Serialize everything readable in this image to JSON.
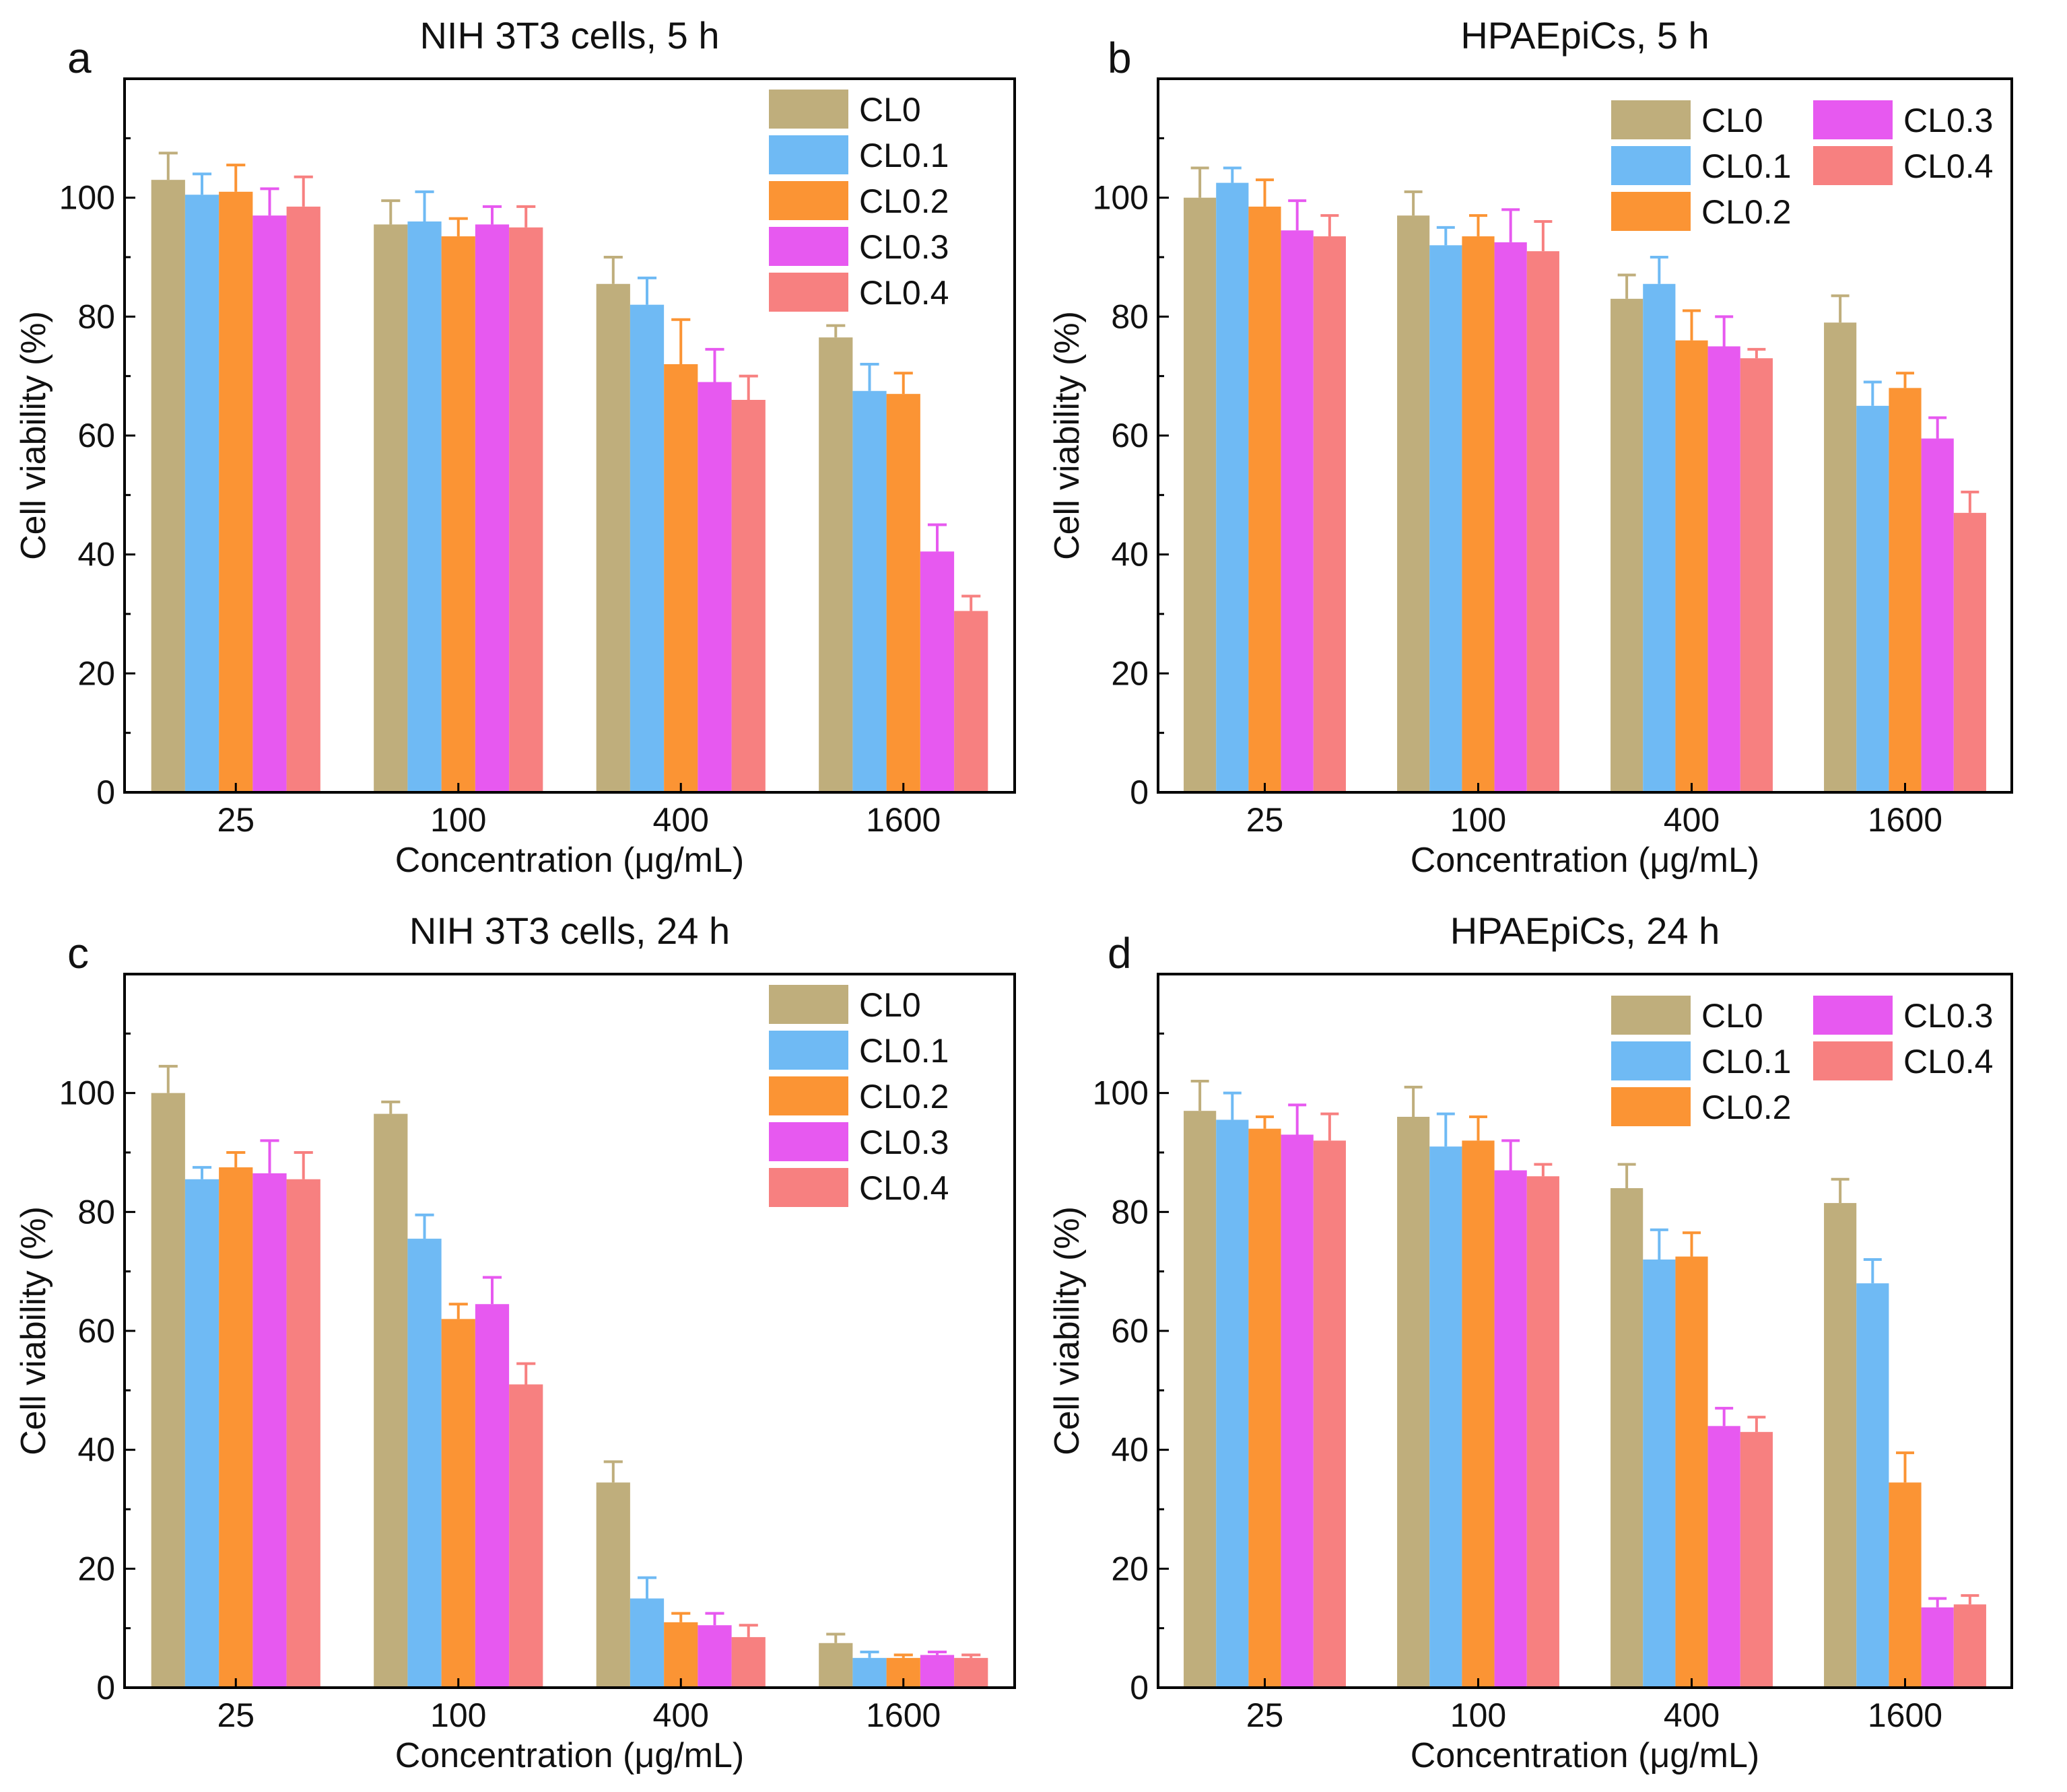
{
  "figure": {
    "x_tick_unit_note": ""
  },
  "colors": {
    "CL0": "#bfae7c",
    "CL0.1": "#6fbaf4",
    "CL0.2": "#fb9434",
    "CL0.3": "#e759f0",
    "CL0.4": "#f78080"
  },
  "chart_data": [
    {
      "type": "bar",
      "panel_label": "a",
      "title": "NIH 3T3 cells, 5 h",
      "xlabel": "Concentration (μg/mL)",
      "ylabel": "Cell viability (%)",
      "categories": [
        "25",
        "100",
        "400",
        "1600"
      ],
      "ylim": [
        0,
        120
      ],
      "yticks": [
        0,
        20,
        40,
        60,
        80,
        100
      ],
      "legend": {
        "placement": "top-right",
        "columns": 1,
        "entries": [
          "CL0",
          "CL0.1",
          "CL0.2",
          "CL0.3",
          "CL0.4"
        ]
      },
      "series": [
        {
          "name": "CL0",
          "values": [
            103,
            95.5,
            85.5,
            76.5
          ],
          "errors": [
            4.5,
            4.0,
            4.5,
            2.0
          ]
        },
        {
          "name": "CL0.1",
          "values": [
            100.5,
            96,
            82,
            67.5
          ],
          "errors": [
            3.5,
            5.0,
            4.5,
            4.5
          ]
        },
        {
          "name": "CL0.2",
          "values": [
            101,
            93.5,
            72,
            67
          ],
          "errors": [
            4.5,
            3.0,
            7.5,
            3.5
          ]
        },
        {
          "name": "CL0.3",
          "values": [
            97,
            95.5,
            69,
            40.5
          ],
          "errors": [
            4.5,
            3.0,
            5.5,
            4.5
          ]
        },
        {
          "name": "CL0.4",
          "values": [
            98.5,
            95,
            66,
            30.5
          ],
          "errors": [
            5.0,
            3.5,
            4.0,
            2.5
          ]
        }
      ]
    },
    {
      "type": "bar",
      "panel_label": "b",
      "title": "HPAEpiCs, 5 h",
      "xlabel": "Concentration (μg/mL)",
      "ylabel": "Cell viability (%)",
      "categories": [
        "25",
        "100",
        "400",
        "1600"
      ],
      "ylim": [
        0,
        120
      ],
      "yticks": [
        0,
        20,
        40,
        60,
        80,
        100
      ],
      "legend": {
        "placement": "top-right",
        "columns": 2,
        "entries": [
          "CL0",
          "CL0.1",
          "CL0.2",
          "CL0.3",
          "CL0.4"
        ]
      },
      "series": [
        {
          "name": "CL0",
          "values": [
            100,
            97,
            83,
            79
          ],
          "errors": [
            5.0,
            4.0,
            4.0,
            4.5
          ]
        },
        {
          "name": "CL0.1",
          "values": [
            102.5,
            92,
            85.5,
            65
          ],
          "errors": [
            2.5,
            3.0,
            4.5,
            4.0
          ]
        },
        {
          "name": "CL0.2",
          "values": [
            98.5,
            93.5,
            76,
            68
          ],
          "errors": [
            4.5,
            3.5,
            5.0,
            2.5
          ]
        },
        {
          "name": "CL0.3",
          "values": [
            94.5,
            92.5,
            75,
            59.5
          ],
          "errors": [
            5.0,
            5.5,
            5.0,
            3.5
          ]
        },
        {
          "name": "CL0.4",
          "values": [
            93.5,
            91,
            73,
            47
          ],
          "errors": [
            3.5,
            5.0,
            1.5,
            3.5
          ]
        }
      ]
    },
    {
      "type": "bar",
      "panel_label": "c",
      "title": "NIH 3T3 cells, 24 h",
      "xlabel": "Concentration (μg/mL)",
      "ylabel": "Cell viability (%)",
      "categories": [
        "25",
        "100",
        "400",
        "1600"
      ],
      "ylim": [
        0,
        120
      ],
      "yticks": [
        0,
        20,
        40,
        60,
        80,
        100
      ],
      "legend": {
        "placement": "top-right",
        "columns": 1,
        "entries": [
          "CL0",
          "CL0.1",
          "CL0.2",
          "CL0.3",
          "CL0.4"
        ]
      },
      "series": [
        {
          "name": "CL0",
          "values": [
            100,
            96.5,
            34.5,
            7.5
          ],
          "errors": [
            4.5,
            2.0,
            3.5,
            1.5
          ]
        },
        {
          "name": "CL0.1",
          "values": [
            85.5,
            75.5,
            15,
            5
          ],
          "errors": [
            2.0,
            4.0,
            3.5,
            1.0
          ]
        },
        {
          "name": "CL0.2",
          "values": [
            87.5,
            62,
            11,
            5
          ],
          "errors": [
            2.5,
            2.5,
            1.5,
            0.5
          ]
        },
        {
          "name": "CL0.3",
          "values": [
            86.5,
            64.5,
            10.5,
            5.5
          ],
          "errors": [
            5.5,
            4.5,
            2.0,
            0.5
          ]
        },
        {
          "name": "CL0.4",
          "values": [
            85.5,
            51,
            8.5,
            5
          ],
          "errors": [
            4.5,
            3.5,
            2.0,
            0.5
          ]
        }
      ]
    },
    {
      "type": "bar",
      "panel_label": "d",
      "title": "HPAEpiCs, 24 h",
      "xlabel": "Concentration (μg/mL)",
      "ylabel": "Cell viability (%)",
      "categories": [
        "25",
        "100",
        "400",
        "1600"
      ],
      "ylim": [
        0,
        120
      ],
      "yticks": [
        0,
        20,
        40,
        60,
        80,
        100
      ],
      "legend": {
        "placement": "top-right",
        "columns": 2,
        "entries": [
          "CL0",
          "CL0.1",
          "CL0.2",
          "CL0.3",
          "CL0.4"
        ]
      },
      "series": [
        {
          "name": "CL0",
          "values": [
            97,
            96,
            84,
            81.5
          ],
          "errors": [
            5.0,
            5.0,
            4.0,
            4.0
          ]
        },
        {
          "name": "CL0.1",
          "values": [
            95.5,
            91,
            72,
            68
          ],
          "errors": [
            4.5,
            5.5,
            5.0,
            4.0
          ]
        },
        {
          "name": "CL0.2",
          "values": [
            94,
            92,
            72.5,
            34.5
          ],
          "errors": [
            2.0,
            4.0,
            4.0,
            5.0
          ]
        },
        {
          "name": "CL0.3",
          "values": [
            93,
            87,
            44,
            13.5
          ],
          "errors": [
            5.0,
            5.0,
            3.0,
            1.5
          ]
        },
        {
          "name": "CL0.4",
          "values": [
            92,
            86,
            43,
            14
          ],
          "errors": [
            4.5,
            2.0,
            2.5,
            1.5
          ]
        }
      ]
    }
  ]
}
